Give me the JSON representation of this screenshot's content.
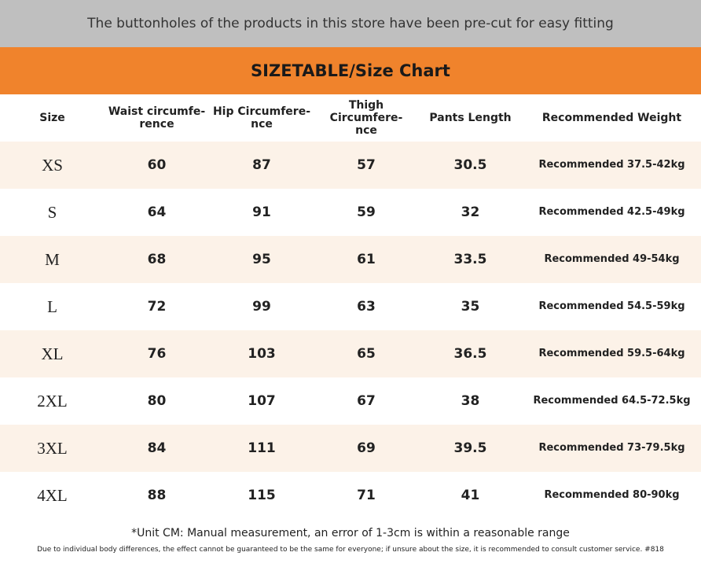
{
  "header": {
    "notice": "The buttonholes of the products in this store have been pre-cut for easy fitting",
    "title": "SIZETABLE/Size Chart"
  },
  "table": {
    "columns": [
      "Size",
      "Waist circumfe-\nrence",
      "Hip Circumfere-\nnce",
      "Thigh Circumfere-\nnce",
      "Pants Length",
      "Recommended Weight"
    ],
    "rows": [
      [
        "XS",
        60,
        87,
        57,
        30.5,
        "Recommended 37.5-42kg"
      ],
      [
        "S",
        64,
        91,
        59,
        32,
        "Recommended 42.5-49kg"
      ],
      [
        "M",
        68,
        95,
        61,
        33.5,
        "Recommended 49-54kg"
      ],
      [
        "L",
        72,
        99,
        63,
        35,
        "Recommended 54.5-59kg"
      ],
      [
        "XL",
        76,
        103,
        65,
        36.5,
        "Recommended 59.5-64kg"
      ],
      [
        "2XL",
        80,
        107,
        67,
        38,
        "Recommended 64.5-72.5kg"
      ],
      [
        "3XL",
        84,
        111,
        69,
        39.5,
        "Recommended 73-79.5kg"
      ],
      [
        "4XL",
        88,
        115,
        71,
        41,
        "Recommended 80-90kg"
      ]
    ]
  },
  "footer": {
    "note": "*Unit CM: Manual measurement, an error of 1-3cm is within a reasonable range",
    "disclaimer": "Due to individual body differences, the effect cannot be guaranteed to be the same for everyone; if unsure about the size, it is recommended to consult customer service. #818"
  }
}
